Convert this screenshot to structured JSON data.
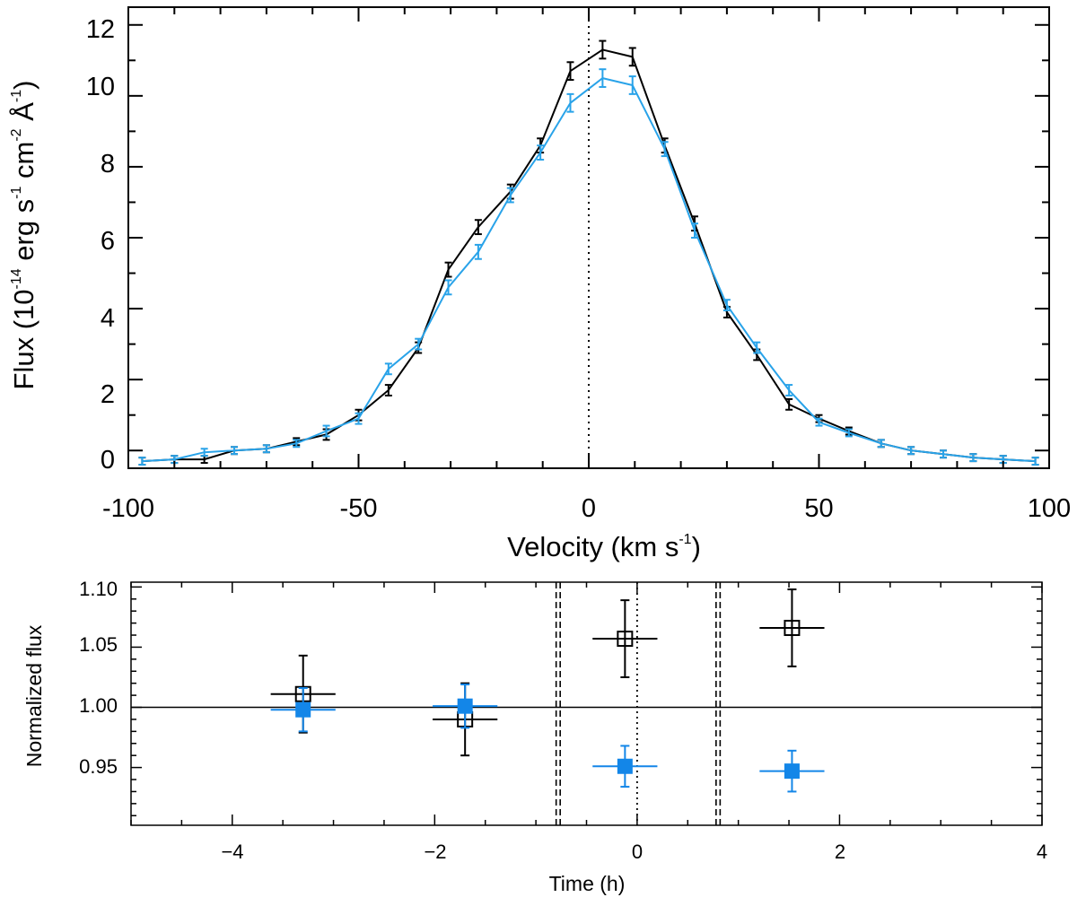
{
  "chart_data": [
    {
      "type": "line",
      "title": "",
      "xlabel": "Velocity (km s",
      "xlabel_sup": "-1",
      "xlabel_close": ")",
      "ylabel_parts": [
        "Flux (10",
        "-14",
        " erg s",
        "-1",
        " cm",
        "-2",
        " Å",
        "-1",
        ")"
      ],
      "xlim": [
        -100,
        100
      ],
      "ylim": [
        -0.5,
        12.5
      ],
      "xticks": [
        -100,
        -50,
        0,
        50,
        100
      ],
      "xtick_labels": [
        "-100",
        "-50",
        "0",
        "50",
        "100"
      ],
      "yticks": [
        0,
        2,
        4,
        6,
        8,
        10,
        12
      ],
      "ytick_labels": [
        "0",
        "2",
        "4",
        "6",
        "8",
        "10",
        "12"
      ],
      "reference_line": {
        "x": 0,
        "style": "dotted"
      },
      "series": [
        {
          "name": "black",
          "color": "#000000",
          "x": [
            -97,
            -90,
            -83.5,
            -77,
            -70,
            -63.5,
            -57,
            -50,
            -43.5,
            -37,
            -30.5,
            -24,
            -17,
            -10.5,
            -4,
            3,
            9.5,
            16.5,
            23,
            30,
            36.5,
            43.5,
            50,
            56.5,
            63.5,
            70,
            77,
            83.5,
            90,
            97
          ],
          "y": [
            -0.3,
            -0.25,
            -0.25,
            0,
            0.05,
            0.25,
            0.45,
            1.0,
            1.7,
            2.9,
            5.1,
            6.3,
            7.3,
            8.6,
            10.7,
            11.3,
            11.1,
            8.6,
            6.4,
            3.9,
            2.7,
            1.3,
            0.9,
            0.55,
            0.2,
            0.0,
            -0.1,
            -0.2,
            -0.25,
            -0.3
          ],
          "err": [
            0.1,
            0.1,
            0.1,
            0.1,
            0.1,
            0.1,
            0.15,
            0.15,
            0.15,
            0.15,
            0.2,
            0.2,
            0.2,
            0.2,
            0.25,
            0.25,
            0.25,
            0.2,
            0.2,
            0.15,
            0.15,
            0.15,
            0.1,
            0.1,
            0.1,
            0.1,
            0.1,
            0.1,
            0.1,
            0.1
          ]
        },
        {
          "name": "blue",
          "color": "#29a3e9",
          "x": [
            -97,
            -90,
            -83.5,
            -77,
            -70,
            -63.5,
            -57,
            -50,
            -43.5,
            -37,
            -30.5,
            -24,
            -17,
            -10.5,
            -4,
            3,
            9.5,
            16.5,
            23,
            30,
            36.5,
            43.5,
            50,
            56.5,
            63.5,
            70,
            77,
            83.5,
            90,
            97
          ],
          "y": [
            -0.3,
            -0.25,
            -0.05,
            0,
            0.05,
            0.2,
            0.55,
            0.9,
            2.3,
            3.0,
            4.6,
            5.6,
            7.2,
            8.4,
            9.8,
            10.5,
            10.3,
            8.5,
            6.2,
            4.1,
            2.9,
            1.7,
            0.8,
            0.5,
            0.2,
            0.0,
            -0.1,
            -0.2,
            -0.25,
            -0.3
          ],
          "err": [
            0.1,
            0.1,
            0.1,
            0.1,
            0.1,
            0.1,
            0.15,
            0.15,
            0.15,
            0.15,
            0.2,
            0.2,
            0.2,
            0.2,
            0.25,
            0.25,
            0.25,
            0.2,
            0.2,
            0.15,
            0.15,
            0.15,
            0.1,
            0.1,
            0.1,
            0.1,
            0.1,
            0.1,
            0.1,
            0.1
          ]
        }
      ]
    },
    {
      "type": "scatter",
      "title": "",
      "xlabel": "Time (h)",
      "ylabel": "Normalized flux",
      "xlim": [
        -5,
        4
      ],
      "ylim": [
        0.902,
        1.104
      ],
      "xticks": [
        -4,
        -2,
        0,
        2,
        4
      ],
      "xtick_labels": [
        "−4",
        "−2",
        "0",
        "2",
        "4"
      ],
      "yticks": [
        0.95,
        1.0,
        1.05,
        1.1
      ],
      "ytick_labels": [
        "0.95",
        "1.00",
        "1.05",
        "1.10"
      ],
      "reference_lines": {
        "horizontal": 1.0,
        "dotted_x": 0,
        "dashed_x": [
          -0.8,
          -0.76,
          0.78,
          0.82
        ]
      },
      "series": [
        {
          "name": "open squares",
          "marker": "open-square",
          "color": "#000000",
          "points": [
            {
              "x": -3.3,
              "y": 1.011,
              "xerr": 0.32,
              "yerr": 0.032
            },
            {
              "x": -1.7,
              "y": 0.99,
              "xerr": 0.32,
              "yerr": 0.03
            },
            {
              "x": -0.12,
              "y": 1.057,
              "xerr": 0.32,
              "yerr": 0.032
            },
            {
              "x": 1.53,
              "y": 1.066,
              "xerr": 0.32,
              "yerr": 0.032
            }
          ]
        },
        {
          "name": "filled squares",
          "marker": "filled-square",
          "color": "#1386e8",
          "points": [
            {
              "x": -3.3,
              "y": 0.998,
              "xerr": 0.32,
              "yerr": 0.018
            },
            {
              "x": -1.7,
              "y": 1.001,
              "xerr": 0.32,
              "yerr": 0.018
            },
            {
              "x": -0.12,
              "y": 0.951,
              "xerr": 0.32,
              "yerr": 0.017
            },
            {
              "x": 1.53,
              "y": 0.947,
              "xerr": 0.32,
              "yerr": 0.017
            }
          ]
        }
      ]
    }
  ]
}
